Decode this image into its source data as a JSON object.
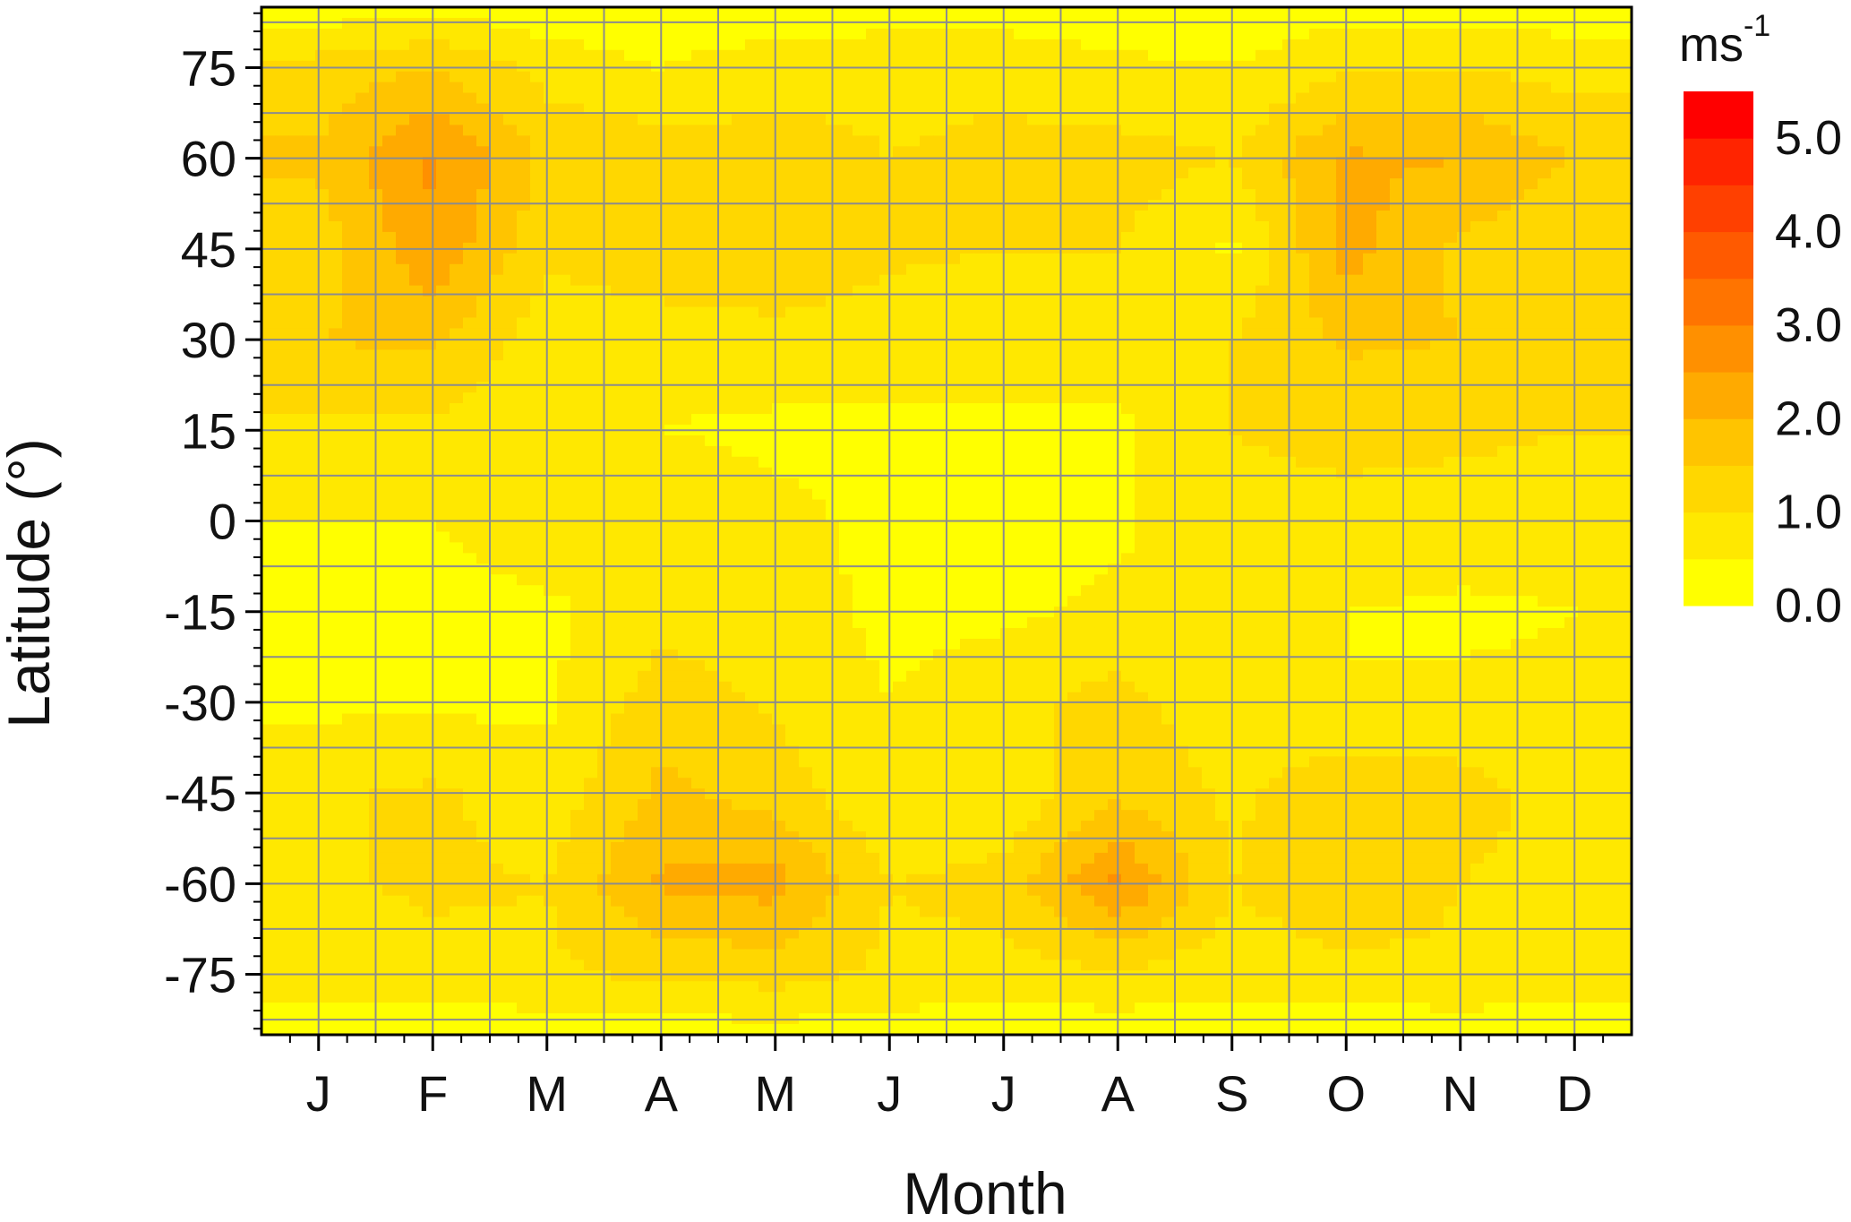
{
  "chart_data": {
    "type": "heatmap",
    "title": "",
    "xlabel": "Month",
    "ylabel": "Latitude (°)",
    "x_categories": [
      "J",
      "F",
      "M",
      "A",
      "M",
      "J",
      "J",
      "A",
      "S",
      "O",
      "N",
      "D"
    ],
    "x_range_months": [
      0.5,
      12.5
    ],
    "y_ticks": [
      75,
      60,
      45,
      30,
      15,
      0,
      -15,
      -30,
      -45,
      -60,
      -75
    ],
    "y_tick_labels": [
      "75",
      "60",
      "45",
      "30",
      "15",
      "0",
      "-15",
      "-30",
      "-45",
      "-60",
      "-75"
    ],
    "ylim": [
      -85,
      85
    ],
    "grid": true,
    "colorbar": {
      "unit": "ms",
      "unit_exponent": "-1",
      "tick_labels": [
        "5.0",
        "4.0",
        "3.0",
        "2.0",
        "1.0",
        "0.0"
      ],
      "range": [
        0,
        5.5
      ],
      "level_step": 0.5,
      "colors": [
        "#ffff00",
        "#ffe800",
        "#ffd700",
        "#ffc400",
        "#ffaa00",
        "#ff9000",
        "#ff7400",
        "#ff5a00",
        "#ff4000",
        "#ff2400",
        "#ff0000"
      ]
    },
    "z_values_note": "wind speed estimated per month (columns J..D) and latitude row",
    "y_grid": [
      85,
      75,
      60,
      45,
      30,
      15,
      0,
      -15,
      -30,
      -45,
      -60,
      -75,
      -85
    ],
    "z": [
      [
        0.2,
        0.3,
        0.2,
        0.1,
        0.2,
        0.2,
        0.2,
        0.2,
        0.2,
        0.3,
        0.3,
        0.2
      ],
      [
        1.2,
        1.5,
        0.8,
        0.5,
        0.8,
        0.9,
        0.9,
        0.6,
        0.5,
        0.9,
        1.0,
        0.8
      ],
      [
        1.6,
        2.6,
        1.4,
        1.3,
        1.2,
        1.0,
        1.1,
        1.2,
        1.0,
        2.1,
        2.0,
        1.5
      ],
      [
        1.2,
        2.4,
        1.1,
        1.4,
        1.5,
        1.1,
        1.0,
        1.0,
        0.4,
        2.2,
        1.4,
        1.0
      ],
      [
        1.5,
        1.6,
        0.7,
        0.7,
        0.8,
        0.7,
        0.7,
        0.8,
        1.0,
        1.6,
        1.5,
        1.5
      ],
      [
        0.9,
        0.9,
        0.6,
        0.5,
        0.4,
        0.4,
        0.4,
        0.4,
        1.0,
        1.1,
        1.1,
        1.0
      ],
      [
        0.5,
        0.5,
        0.8,
        0.9,
        0.6,
        0.4,
        0.4,
        0.4,
        0.9,
        0.9,
        0.8,
        0.7
      ],
      [
        0.3,
        0.3,
        0.4,
        0.8,
        0.7,
        0.4,
        0.4,
        0.6,
        0.6,
        0.5,
        0.4,
        0.5
      ],
      [
        0.4,
        0.4,
        0.4,
        1.3,
        0.9,
        0.5,
        0.8,
        1.2,
        0.6,
        0.5,
        0.6,
        0.6
      ],
      [
        0.9,
        1.1,
        0.7,
        1.6,
        1.3,
        0.5,
        0.6,
        1.4,
        0.9,
        1.4,
        1.2,
        0.8
      ],
      [
        0.9,
        1.1,
        1.0,
        2.1,
        2.2,
        1.0,
        1.2,
        2.6,
        1.0,
        1.5,
        1.0,
        0.8
      ],
      [
        0.7,
        0.8,
        0.9,
        1.1,
        1.2,
        0.9,
        0.8,
        0.9,
        0.7,
        0.8,
        0.9,
        0.8
      ],
      [
        0.2,
        0.2,
        0.2,
        0.2,
        0.3,
        0.2,
        0.2,
        0.2,
        0.2,
        0.2,
        0.2,
        0.2
      ]
    ]
  }
}
